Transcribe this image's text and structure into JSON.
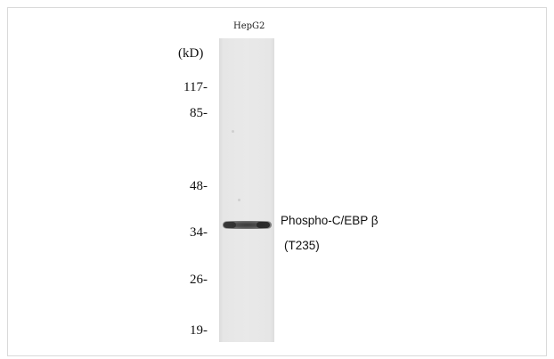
{
  "blot": {
    "lane_label": "HepG2",
    "unit_label": "(kD)",
    "markers": [
      "117-",
      "85-",
      "48-",
      "34-",
      "26-",
      "19-"
    ],
    "target_name": "Phospho-C/EBP β",
    "target_site": "(T235)"
  }
}
